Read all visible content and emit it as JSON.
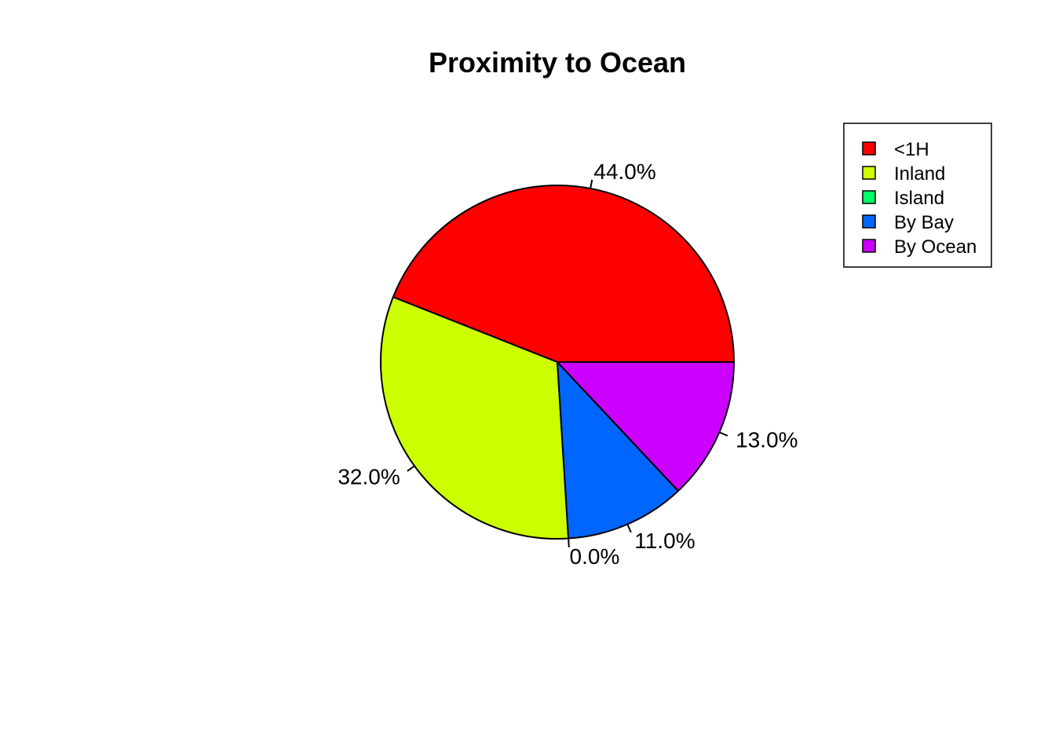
{
  "chart_data": {
    "type": "pie",
    "title": "Proximity to Ocean",
    "slices": [
      {
        "name": "<1H",
        "value": 44.0,
        "label": "44.0%",
        "color": "#FF0000"
      },
      {
        "name": "Inland",
        "value": 32.0,
        "label": "32.0%",
        "color": "#CCFF00"
      },
      {
        "name": "Island",
        "value": 0.0,
        "label": "0.0%",
        "color": "#00FF66"
      },
      {
        "name": "By Bay",
        "value": 11.0,
        "label": "11.0%",
        "color": "#0066FF"
      },
      {
        "name": "By Ocean",
        "value": 13.0,
        "label": "13.0%",
        "color": "#CC00FF"
      }
    ],
    "start_angle_deg": 0,
    "direction": "counterclockwise",
    "legend": {
      "position": "top-right",
      "boxed": true
    }
  }
}
